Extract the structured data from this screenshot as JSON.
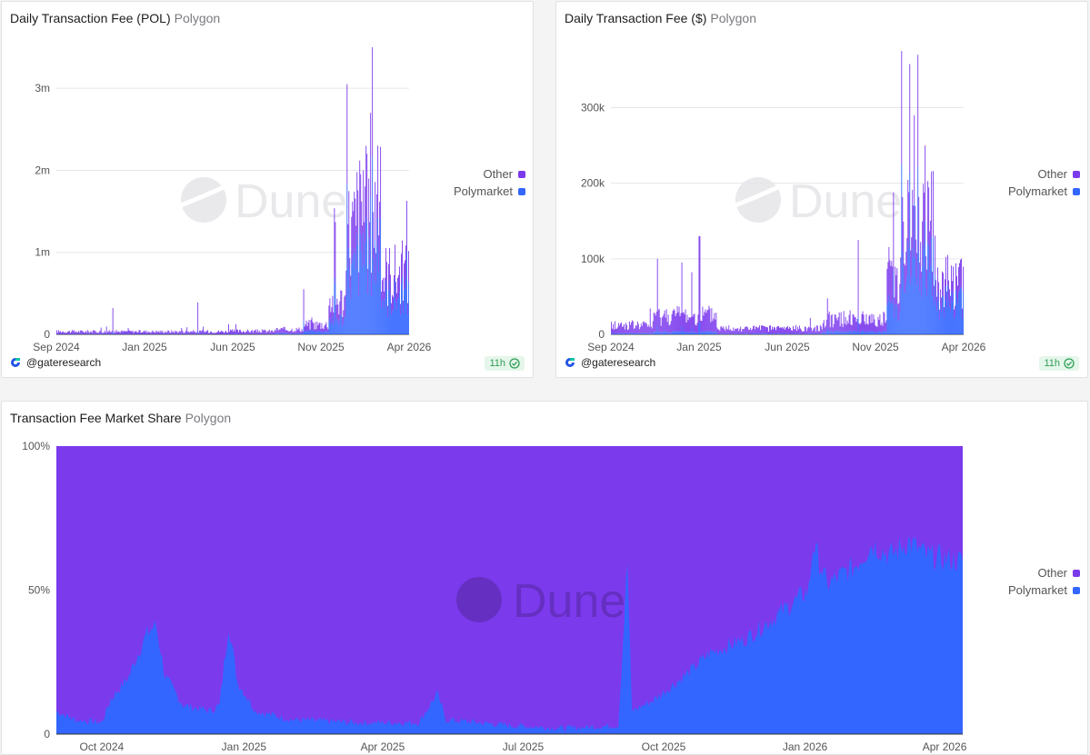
{
  "colors": {
    "other": "#7c3aed",
    "polymarket": "#3366ff",
    "grid": "#e6e6ea",
    "watermark": "#e9e9ec"
  },
  "watermark_text": "Dune",
  "charts": [
    {
      "id": "pol",
      "title": "Daily Transaction Fee (POL)",
      "subtitle": "Polygon",
      "y_ticks": [
        "0",
        "1m",
        "2m",
        "3m"
      ],
      "x_ticks": [
        "Sep 2024",
        "Jan 2025",
        "Jun 2025",
        "Nov 2025",
        "Apr 2026"
      ],
      "legend": [
        "Other",
        "Polymarket"
      ],
      "credit": "@gateresearch",
      "badge": "11h"
    },
    {
      "id": "usd",
      "title": "Daily Transaction Fee ($)",
      "subtitle": "Polygon",
      "y_ticks": [
        "0",
        "100k",
        "200k",
        "300k"
      ],
      "x_ticks": [
        "Sep 2024",
        "Jan 2025",
        "Jun 2025",
        "Nov 2025",
        "Apr 2026"
      ],
      "legend": [
        "Other",
        "Polymarket"
      ],
      "credit": "@gateresearch",
      "badge": "11h"
    },
    {
      "id": "share",
      "title": "Transaction Fee Market Share",
      "subtitle": "Polygon",
      "y_ticks": [
        "0",
        "50%",
        "100%"
      ],
      "x_ticks": [
        "Oct 2024",
        "Jan 2025",
        "Apr 2025",
        "Jul 2025",
        "Oct 2025",
        "Jan 2026",
        "Apr 2026"
      ],
      "legend": [
        "Other",
        "Polymarket"
      ]
    }
  ],
  "chart_data": [
    {
      "type": "bar",
      "stacked": true,
      "title": "Daily Transaction Fee (POL)",
      "ylabel": "POL",
      "ylim": [
        0,
        3500000
      ],
      "x_range": [
        "2024-09",
        "2026-04"
      ],
      "series_names": [
        "Polymarket",
        "Other"
      ],
      "segments": [
        {
          "from": 0.0,
          "to": 0.48,
          "total": 35000,
          "poly": 0.1
        },
        {
          "from": 0.48,
          "to": 0.62,
          "total": 40000,
          "poly": 0.08
        },
        {
          "from": 0.62,
          "to": 0.7,
          "total": 60000,
          "poly": 0.18
        },
        {
          "from": 0.7,
          "to": 0.77,
          "total": 120000,
          "poly": 0.3
        },
        {
          "from": 0.77,
          "to": 0.82,
          "total": 420000,
          "poly": 0.45
        },
        {
          "from": 0.82,
          "to": 0.85,
          "total": 1300000,
          "poly": 0.6
        },
        {
          "from": 0.85,
          "to": 0.92,
          "total": 1500000,
          "poly": 0.62
        },
        {
          "from": 0.92,
          "to": 1.0,
          "total": 750000,
          "poly": 0.62
        }
      ],
      "peaks": [
        {
          "at": 0.16,
          "value": 320000
        },
        {
          "at": 0.4,
          "value": 390000
        },
        {
          "at": 0.7,
          "value": 550000
        },
        {
          "at": 0.823,
          "value": 3050000
        },
        {
          "at": 0.87,
          "value": 2000000
        },
        {
          "at": 0.895,
          "value": 3500000
        },
        {
          "at": 0.89,
          "value": 2700000
        },
        {
          "at": 0.91,
          "value": 2300000
        }
      ]
    },
    {
      "type": "bar",
      "stacked": true,
      "title": "Daily Transaction Fee ($)",
      "ylabel": "USD",
      "ylim": [
        0,
        380000
      ],
      "x_range": [
        "2024-09",
        "2026-04"
      ],
      "series_names": [
        "Polymarket",
        "Other"
      ],
      "segments": [
        {
          "from": 0.0,
          "to": 0.12,
          "total": 12000,
          "poly": 0.1
        },
        {
          "from": 0.12,
          "to": 0.3,
          "total": 25000,
          "poly": 0.12
        },
        {
          "from": 0.3,
          "to": 0.6,
          "total": 8000,
          "poly": 0.08
        },
        {
          "from": 0.6,
          "to": 0.78,
          "total": 20000,
          "poly": 0.18
        },
        {
          "from": 0.78,
          "to": 0.82,
          "total": 80000,
          "poly": 0.45
        },
        {
          "from": 0.82,
          "to": 0.92,
          "total": 140000,
          "poly": 0.6
        },
        {
          "from": 0.92,
          "to": 1.0,
          "total": 70000,
          "poly": 0.62
        }
      ],
      "peaks": [
        {
          "at": 0.13,
          "value": 100000
        },
        {
          "at": 0.2,
          "value": 95000
        },
        {
          "at": 0.25,
          "value": 130000
        },
        {
          "at": 0.7,
          "value": 125000
        },
        {
          "at": 0.823,
          "value": 375000
        },
        {
          "at": 0.87,
          "value": 370000
        },
        {
          "at": 0.86,
          "value": 290000
        },
        {
          "at": 0.89,
          "value": 250000
        }
      ]
    },
    {
      "type": "area",
      "stacked": true,
      "normalized": true,
      "title": "Transaction Fee Market Share",
      "ylabel": "share",
      "ylim": [
        0,
        100
      ],
      "x_range": [
        "2024-09",
        "2026-04"
      ],
      "series_names": [
        "Polymarket",
        "Other"
      ],
      "polymarket_share": [
        [
          0.0,
          8
        ],
        [
          0.02,
          5
        ],
        [
          0.05,
          4
        ],
        [
          0.06,
          12
        ],
        [
          0.08,
          20
        ],
        [
          0.09,
          28
        ],
        [
          0.1,
          35
        ],
        [
          0.11,
          38
        ],
        [
          0.12,
          20
        ],
        [
          0.14,
          10
        ],
        [
          0.17,
          8
        ],
        [
          0.18,
          10
        ],
        [
          0.19,
          38
        ],
        [
          0.2,
          18
        ],
        [
          0.22,
          8
        ],
        [
          0.26,
          5
        ],
        [
          0.33,
          4
        ],
        [
          0.4,
          4
        ],
        [
          0.42,
          14
        ],
        [
          0.43,
          5
        ],
        [
          0.5,
          3
        ],
        [
          0.56,
          2
        ],
        [
          0.62,
          3
        ],
        [
          0.63,
          60
        ],
        [
          0.635,
          8
        ],
        [
          0.66,
          12
        ],
        [
          0.7,
          22
        ],
        [
          0.72,
          28
        ],
        [
          0.76,
          33
        ],
        [
          0.79,
          40
        ],
        [
          0.83,
          50
        ],
        [
          0.835,
          66
        ],
        [
          0.85,
          52
        ],
        [
          0.88,
          58
        ],
        [
          0.9,
          66
        ],
        [
          0.92,
          62
        ],
        [
          0.94,
          67
        ],
        [
          0.96,
          62
        ],
        [
          1.0,
          60
        ]
      ],
      "other_share_note": "remainder to 100%"
    }
  ]
}
